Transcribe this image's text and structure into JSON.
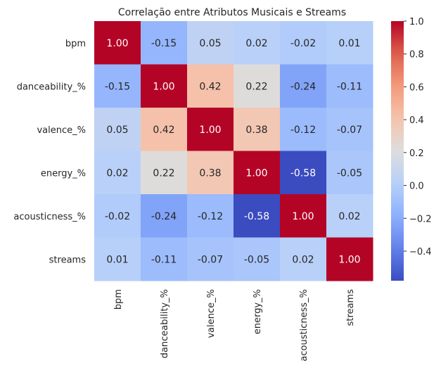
{
  "chart_data": {
    "type": "heatmap",
    "title": "Correlação entre Atributos Musicais e Streams",
    "rows": [
      "bpm",
      "danceability_%",
      "valence_%",
      "energy_%",
      "acousticness_%",
      "streams"
    ],
    "columns": [
      "bpm",
      "danceability_%",
      "valence_%",
      "energy_%",
      "acousticness_%",
      "streams"
    ],
    "values": [
      [
        1.0,
        -0.15,
        0.05,
        0.02,
        -0.02,
        0.01
      ],
      [
        -0.15,
        1.0,
        0.42,
        0.22,
        -0.24,
        -0.11
      ],
      [
        0.05,
        0.42,
        1.0,
        0.38,
        -0.12,
        -0.07
      ],
      [
        0.02,
        0.22,
        0.38,
        1.0,
        -0.58,
        -0.05
      ],
      [
        -0.02,
        -0.24,
        -0.12,
        -0.58,
        1.0,
        0.02
      ],
      [
        0.01,
        -0.11,
        -0.07,
        -0.05,
        0.02,
        1.0
      ]
    ],
    "value_format": "2 decimals",
    "colormap": "coolwarm",
    "color_range": [
      -0.58,
      1.0
    ],
    "colorbar_ticks": [
      1.0,
      0.8,
      0.6,
      0.4,
      0.2,
      0.0,
      -0.2,
      -0.4
    ],
    "colorbar_tick_labels": [
      "1.0",
      "0.8",
      "0.6",
      "0.4",
      "0.2",
      "0.0",
      "−0.2",
      "−0.4"
    ],
    "colors": {
      "low": "#3b4cc0",
      "mid": "#dddddd",
      "high": "#b40426"
    }
  }
}
